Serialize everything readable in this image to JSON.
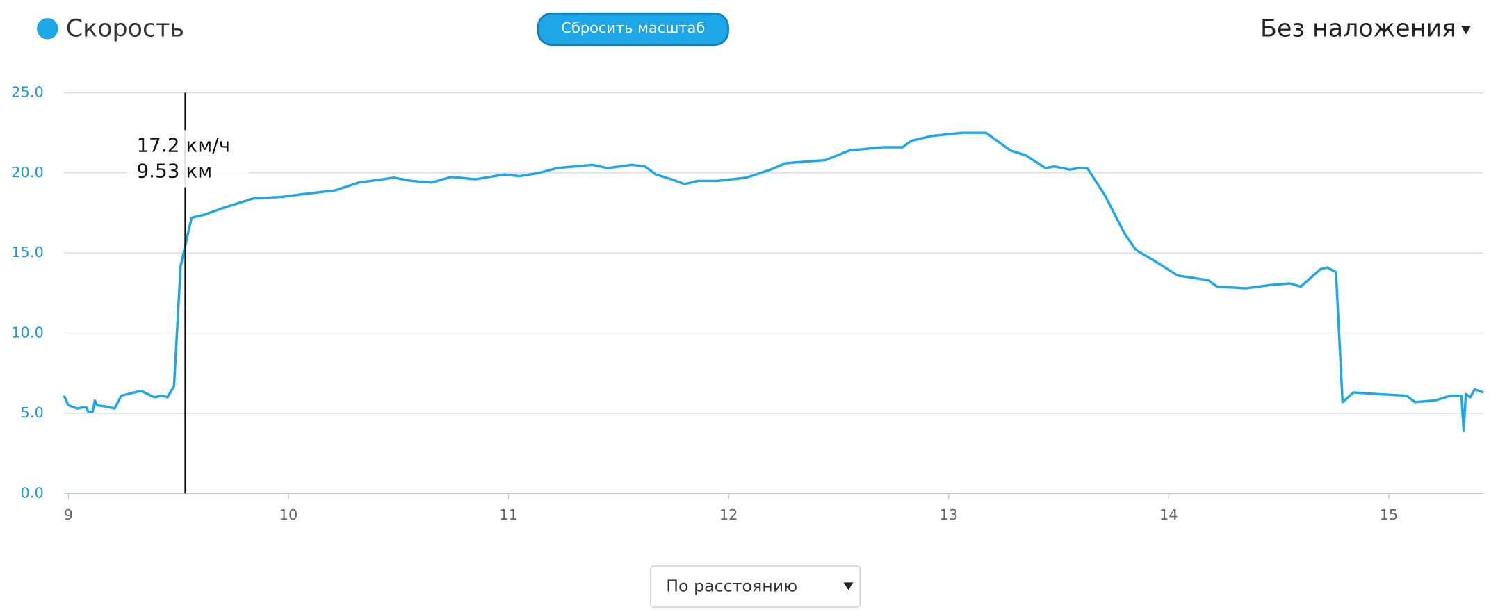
{
  "chart_data": {
    "type": "line",
    "legend": "Скорость",
    "buttons": {
      "reset_zoom": "Сбросить масштаб",
      "overlay": "Без наложения",
      "axis_mode": "По расстоянию"
    },
    "x": [
      8.98,
      9.0,
      9.04,
      9.08,
      9.09,
      9.11,
      9.12,
      9.13,
      9.18,
      9.21,
      9.24,
      9.33,
      9.39,
      9.43,
      9.45,
      9.48,
      9.51,
      9.56,
      9.62,
      9.7,
      9.84,
      9.97,
      10.08,
      10.21,
      10.32,
      10.48,
      10.56,
      10.65,
      10.74,
      10.85,
      10.98,
      11.05,
      11.14,
      11.22,
      11.38,
      11.45,
      11.56,
      11.62,
      11.67,
      11.74,
      11.8,
      11.86,
      11.95,
      12.08,
      12.19,
      12.26,
      12.44,
      12.55,
      12.7,
      12.79,
      12.83,
      12.92,
      13.06,
      13.17,
      13.28,
      13.35,
      13.44,
      13.48,
      13.55,
      13.59,
      13.63,
      13.71,
      13.8,
      13.85,
      13.96,
      14.04,
      14.18,
      14.22,
      14.35,
      14.46,
      14.55,
      14.6,
      14.69,
      14.72,
      14.76,
      14.79,
      14.84,
      14.95,
      15.08,
      15.12,
      15.21,
      15.28,
      15.33,
      15.34,
      15.35,
      15.37,
      15.39,
      15.43
    ],
    "series": [
      {
        "name": "Скорость",
        "color": "#1ea7e8",
        "values": [
          6.1,
          5.5,
          5.3,
          5.4,
          5.1,
          5.1,
          5.8,
          5.5,
          5.4,
          5.3,
          6.1,
          6.4,
          6.0,
          6.1,
          6.0,
          6.7,
          14.2,
          17.2,
          17.4,
          17.8,
          18.4,
          18.5,
          18.7,
          18.9,
          19.4,
          19.7,
          19.5,
          19.4,
          19.75,
          19.6,
          19.9,
          19.8,
          20.0,
          20.3,
          20.5,
          20.3,
          20.5,
          20.4,
          19.9,
          19.6,
          19.3,
          19.5,
          19.5,
          19.7,
          20.2,
          20.6,
          20.8,
          21.4,
          21.6,
          21.6,
          22.0,
          22.3,
          22.5,
          22.5,
          21.4,
          21.1,
          20.3,
          20.4,
          20.2,
          20.3,
          20.3,
          18.6,
          16.2,
          15.2,
          14.3,
          13.6,
          13.3,
          12.9,
          12.8,
          13.0,
          13.1,
          12.9,
          14.0,
          14.1,
          13.8,
          5.7,
          6.3,
          6.2,
          6.1,
          5.7,
          5.8,
          6.1,
          6.1,
          3.9,
          6.2,
          6.0,
          6.5,
          6.3
        ]
      }
    ],
    "xlim": [
      8.98,
      15.43
    ],
    "xticks": [
      9,
      10,
      11,
      12,
      13,
      14,
      15
    ],
    "ylim": [
      0,
      25
    ],
    "yticks": [
      {
        "value": 0,
        "label": "0.0"
      },
      {
        "value": 5,
        "label": "5.0"
      },
      {
        "value": 10,
        "label": "10.0"
      },
      {
        "value": 15,
        "label": "15.0"
      },
      {
        "value": 20,
        "label": "20.0"
      },
      {
        "value": 25,
        "label": "25.0"
      }
    ],
    "grid": true,
    "tooltip": {
      "y": {
        "value": 17.2,
        "label": "17.2 км/ч"
      },
      "x": {
        "value": 9.53,
        "label": "9.53 км"
      }
    }
  }
}
